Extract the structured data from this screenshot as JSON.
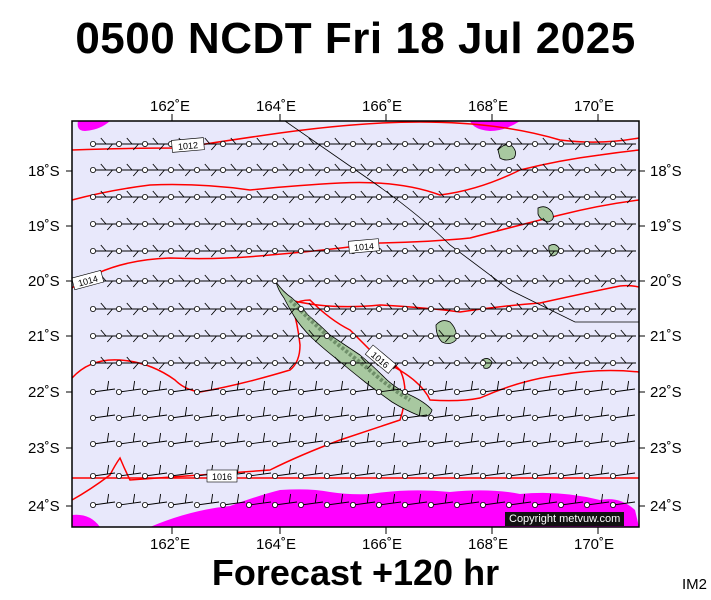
{
  "title": "0500 NCDT Fri 18 Jul 2025",
  "footer": "Forecast +120 hr",
  "image_id": "IM2",
  "copyright": "Copyright metvuw.com",
  "lon_labels": [
    "162˚E",
    "164˚E",
    "166˚E",
    "168˚E",
    "170˚E"
  ],
  "lat_labels": [
    "18˚S",
    "19˚S",
    "20˚S",
    "21˚S",
    "22˚S",
    "23˚S",
    "24˚S"
  ],
  "isobar_labels": [
    "1012",
    "1014",
    "1014",
    "1016",
    "1016"
  ],
  "colors": {
    "ocean": "#e8e8fb",
    "rain": "#ff00ff",
    "isobar": "#ff0000",
    "land": "#a8c8a0",
    "land_shade": "#6f8f6a"
  }
}
